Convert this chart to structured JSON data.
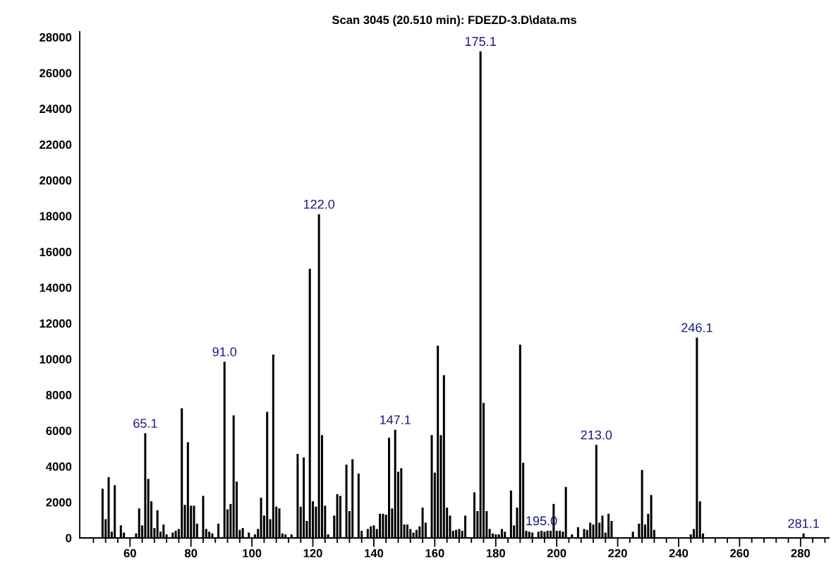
{
  "chart_data": {
    "type": "bar",
    "title": "Scan 3045 (20.510 min): FDEZD-3.D\\data.ms",
    "color": "#000000",
    "x": [
      51,
      52,
      53,
      54,
      55,
      57,
      58,
      62,
      63,
      64,
      65,
      66,
      67,
      68,
      69,
      70,
      71,
      72,
      74,
      75,
      76,
      77,
      78,
      79,
      80,
      81,
      82,
      84,
      85,
      86,
      87,
      89,
      91,
      92,
      93,
      94,
      95,
      96,
      97,
      99,
      101,
      102,
      103,
      104,
      105,
      106,
      107,
      108,
      109,
      110,
      111,
      113,
      115,
      116,
      117,
      118,
      119,
      120,
      121,
      122,
      123,
      124,
      125,
      127,
      128,
      129,
      131,
      132,
      133,
      135,
      136,
      138,
      139,
      140,
      141,
      142,
      143,
      144,
      145,
      146,
      147,
      148,
      149,
      150,
      151,
      152,
      153,
      154,
      155,
      156,
      157,
      159,
      160,
      161,
      162,
      163,
      164,
      165,
      166,
      167,
      168,
      169,
      170,
      173,
      174,
      175,
      176,
      177,
      178,
      179,
      180,
      181,
      182,
      183,
      185,
      186,
      187,
      188,
      189,
      190,
      191,
      192,
      194,
      195,
      196,
      197,
      198,
      199,
      200,
      201,
      202,
      203,
      205,
      207,
      209,
      210,
      211,
      212,
      213,
      214,
      215,
      216,
      217,
      218,
      225,
      227,
      228,
      229,
      230,
      231,
      232,
      244,
      245,
      246,
      247,
      248,
      281
    ],
    "values": [
      2750,
      1050,
      3400,
      350,
      2950,
      700,
      300,
      250,
      1650,
      700,
      5850,
      3300,
      2050,
      550,
      1550,
      350,
      750,
      200,
      300,
      400,
      500,
      7250,
      1850,
      5350,
      1800,
      1800,
      800,
      2350,
      500,
      350,
      250,
      800,
      9850,
      1600,
      1900,
      6850,
      3150,
      450,
      550,
      300,
      200,
      500,
      2250,
      1250,
      7050,
      1050,
      10250,
      1750,
      1650,
      250,
      200,
      200,
      4700,
      1750,
      4500,
      950,
      15050,
      2050,
      1750,
      18100,
      5750,
      1800,
      200,
      1250,
      2450,
      2350,
      4100,
      1500,
      4400,
      3600,
      400,
      500,
      650,
      700,
      500,
      1350,
      1350,
      1300,
      5600,
      1650,
      6050,
      3700,
      3900,
      750,
      750,
      500,
      300,
      450,
      650,
      1700,
      850,
      5750,
      3650,
      10750,
      5750,
      9100,
      1700,
      1250,
      400,
      450,
      500,
      400,
      1250,
      2550,
      1500,
      27200,
      7550,
      1500,
      500,
      250,
      200,
      200,
      500,
      350,
      2650,
      700,
      1700,
      10800,
      4200,
      400,
      350,
      300,
      350,
      400,
      350,
      400,
      400,
      1900,
      400,
      400,
      350,
      2850,
      200,
      600,
      500,
      450,
      850,
      750,
      5200,
      850,
      1250,
      300,
      1350,
      950,
      350,
      800,
      3800,
      750,
      1350,
      2400,
      450,
      200,
      500,
      11200,
      2050,
      250,
      250
    ],
    "xlim": [
      43.5,
      289.3
    ],
    "ylim": [
      0,
      28300
    ],
    "xticks": [
      {
        "value": 48,
        "label": null
      },
      {
        "value": 52,
        "label": null
      },
      {
        "value": 56,
        "label": null
      },
      60,
      {
        "value": 64,
        "label": null
      },
      {
        "value": 68,
        "label": null
      },
      {
        "value": 72,
        "label": null
      },
      {
        "value": 76,
        "label": null
      },
      80,
      {
        "value": 84,
        "label": null
      },
      {
        "value": 88,
        "label": null
      },
      {
        "value": 92,
        "label": null
      },
      {
        "value": 96,
        "label": null
      },
      100,
      {
        "value": 104,
        "label": null
      },
      {
        "value": 108,
        "label": null
      },
      {
        "value": 112,
        "label": null
      },
      {
        "value": 116,
        "label": null
      },
      120,
      {
        "value": 124,
        "label": null
      },
      {
        "value": 128,
        "label": null
      },
      {
        "value": 132,
        "label": null
      },
      {
        "value": 136,
        "label": null
      },
      140,
      {
        "value": 144,
        "label": null
      },
      {
        "value": 148,
        "label": null
      },
      {
        "value": 152,
        "label": null
      },
      {
        "value": 156,
        "label": null
      },
      160,
      {
        "value": 164,
        "label": null
      },
      {
        "value": 168,
        "label": null
      },
      {
        "value": 172,
        "label": null
      },
      {
        "value": 176,
        "label": null
      },
      180,
      {
        "value": 184,
        "label": null
      },
      {
        "value": 188,
        "label": null
      },
      {
        "value": 192,
        "label": null
      },
      {
        "value": 196,
        "label": null
      },
      200,
      {
        "value": 204,
        "label": null
      },
      {
        "value": 208,
        "label": null
      },
      {
        "value": 212,
        "label": null
      },
      {
        "value": 216,
        "label": null
      },
      220,
      {
        "value": 224,
        "label": null
      },
      {
        "value": 228,
        "label": null
      },
      {
        "value": 232,
        "label": null
      },
      {
        "value": 236,
        "label": null
      },
      240,
      {
        "value": 244,
        "label": null
      },
      {
        "value": 248,
        "label": null
      },
      {
        "value": 252,
        "label": null
      },
      {
        "value": 256,
        "label": null
      },
      260,
      {
        "value": 264,
        "label": null
      },
      {
        "value": 268,
        "label": null
      },
      {
        "value": 272,
        "label": null
      },
      {
        "value": 276,
        "label": null
      },
      280,
      {
        "value": 284,
        "label": null
      },
      {
        "value": 288,
        "label": null
      }
    ],
    "yticks": [
      0,
      2000,
      4000,
      6000,
      8000,
      10000,
      12000,
      14000,
      16000,
      18000,
      20000,
      22000,
      24000,
      26000,
      28000
    ],
    "annotations": [
      {
        "text": "65.1",
        "x": 65,
        "y": 5850
      },
      {
        "text": "91.0",
        "x": 91,
        "y": 9850
      },
      {
        "text": "122.0",
        "x": 122,
        "y": 18100
      },
      {
        "text": "147.1",
        "x": 147,
        "y": 6050
      },
      {
        "text": "175.1",
        "x": 175,
        "y": 27200
      },
      {
        "text": "195.0",
        "x": 195,
        "y": 400
      },
      {
        "text": "213.0",
        "x": 213,
        "y": 5200
      },
      {
        "text": "246.1",
        "x": 246,
        "y": 11200
      },
      {
        "text": "281.1",
        "x": 281,
        "y": 250
      }
    ]
  }
}
